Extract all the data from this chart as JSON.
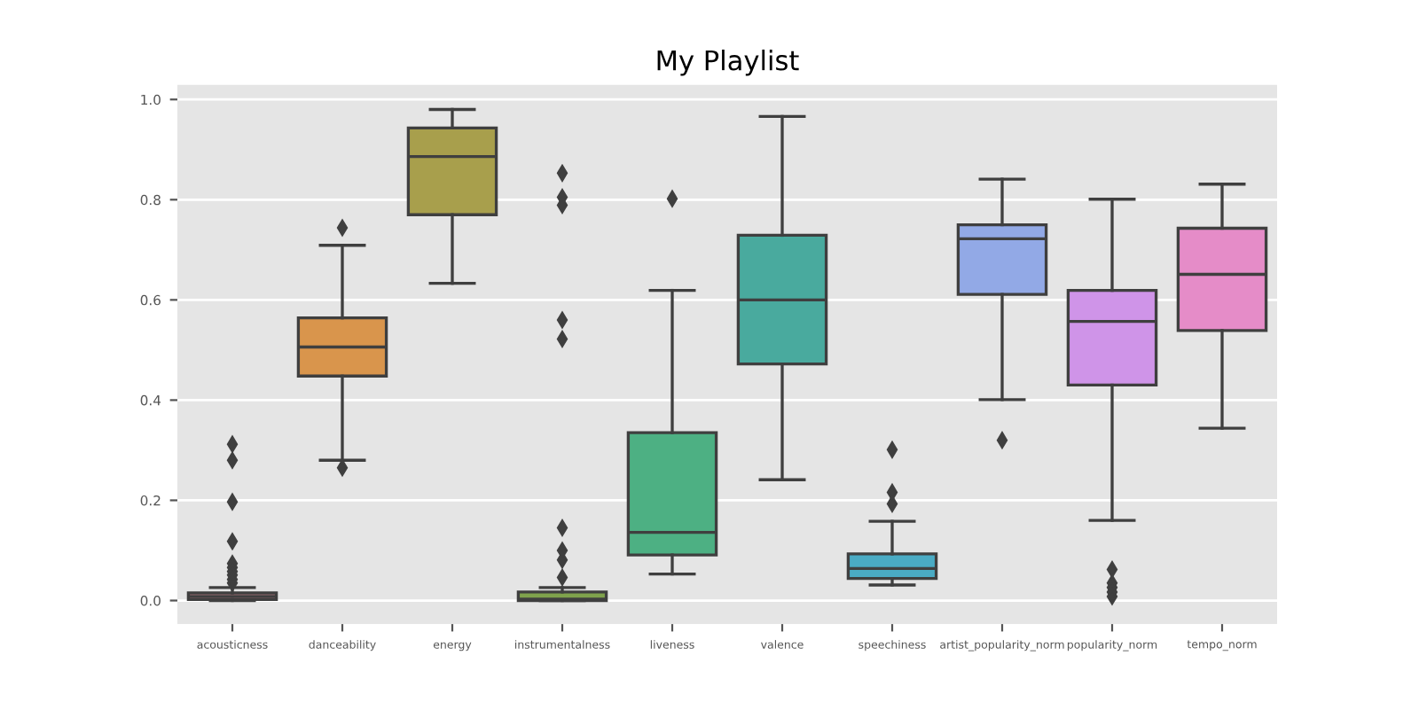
{
  "chart_data": {
    "type": "box",
    "title": "My Playlist",
    "categories": [
      "acousticness",
      "danceability",
      "energy",
      "instrumentalness",
      "liveness",
      "valence",
      "speechiness",
      "artist_popularity_norm",
      "popularity_norm",
      "tempo_norm"
    ],
    "colors": [
      "#df8a97",
      "#d9954c",
      "#a89f4c",
      "#7fa24c",
      "#4db083",
      "#49aa9e",
      "#4aabc4",
      "#92a9e6",
      "#cf94e8",
      "#e58cc8"
    ],
    "boxes": [
      {
        "low": 0,
        "q1": 0.002,
        "median": 0.008,
        "q3": 0.015,
        "high": 0.026,
        "outliers": [
          0.312,
          0.28,
          0.197,
          0.118,
          0.074,
          0.066,
          0.058,
          0.051,
          0.042,
          0.035
        ]
      },
      {
        "low": 0.28,
        "q1": 0.448,
        "median": 0.506,
        "q3": 0.564,
        "high": 0.709,
        "outliers": [
          0.744,
          0.265
        ]
      },
      {
        "low": 0.633,
        "q1": 0.77,
        "median": 0.886,
        "q3": 0.943,
        "high": 0.98
      },
      {
        "low": 0,
        "q1": 0,
        "median": 0.003,
        "q3": 0.017,
        "high": 0.026,
        "outliers": [
          0.853,
          0.805,
          0.789,
          0.56,
          0.522,
          0.145,
          0.1,
          0.081,
          0.046
        ]
      },
      {
        "low": 0.053,
        "q1": 0.091,
        "median": 0.136,
        "q3": 0.335,
        "high": 0.619,
        "outliers": [
          0.802
        ]
      },
      {
        "low": 0.241,
        "q1": 0.472,
        "median": 0.6,
        "q3": 0.729,
        "high": 0.966
      },
      {
        "low": 0.031,
        "q1": 0.044,
        "median": 0.064,
        "q3": 0.093,
        "high": 0.158,
        "outliers": [
          0.301,
          0.216,
          0.193
        ]
      },
      {
        "low": 0.401,
        "q1": 0.611,
        "median": 0.722,
        "q3": 0.75,
        "high": 0.841,
        "outliers": [
          0.32
        ]
      },
      {
        "low": 0.16,
        "q1": 0.43,
        "median": 0.557,
        "q3": 0.619,
        "high": 0.801,
        "outliers": [
          0.062,
          0.035,
          0.026,
          0.017,
          0.008
        ]
      },
      {
        "low": 0.344,
        "q1": 0.539,
        "median": 0.651,
        "q3": 0.743,
        "high": 0.831
      }
    ],
    "ylim": [
      -0.047,
      1.029
    ],
    "yticks": [
      {
        "value": 0,
        "label": "0.0"
      },
      {
        "value": 0.2,
        "label": "0.2"
      },
      {
        "value": 0.4,
        "label": "0.4"
      },
      {
        "value": 0.6,
        "label": "0.6"
      },
      {
        "value": 0.8,
        "label": "0.8"
      },
      {
        "value": 1,
        "label": "1.0"
      }
    ],
    "grid": "y",
    "marker": "diamond"
  }
}
